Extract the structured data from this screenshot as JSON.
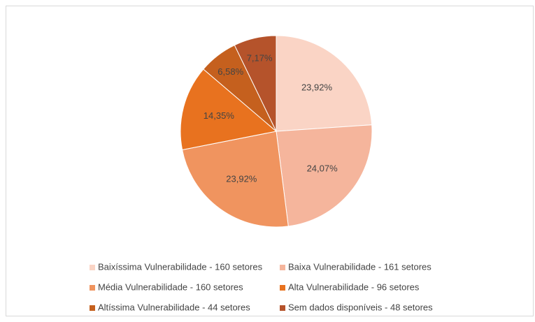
{
  "chart_data": {
    "type": "pie",
    "categories": [
      "Baixíssima Vulnerabilidade - 160 setores",
      "Baixa Vulnerabilidade - 161 setores",
      "Média Vulnerabilidade - 160 setores",
      "Alta Vulnerabilidade - 96 setores",
      "Altíssima Vulnerabilidade - 44 setores",
      "Sem dados disponíveis - 48 setores"
    ],
    "values": [
      23.92,
      24.07,
      23.92,
      14.35,
      6.58,
      7.17
    ],
    "value_labels": [
      "23,92%",
      "24,07%",
      "23,92%",
      "14,35%",
      "6,58%",
      "7,17%"
    ],
    "colors": [
      "#fad4c5",
      "#f5b59c",
      "#f0945f",
      "#e8721f",
      "#c5601e",
      "#b5532b"
    ],
    "legend": "bottom"
  }
}
